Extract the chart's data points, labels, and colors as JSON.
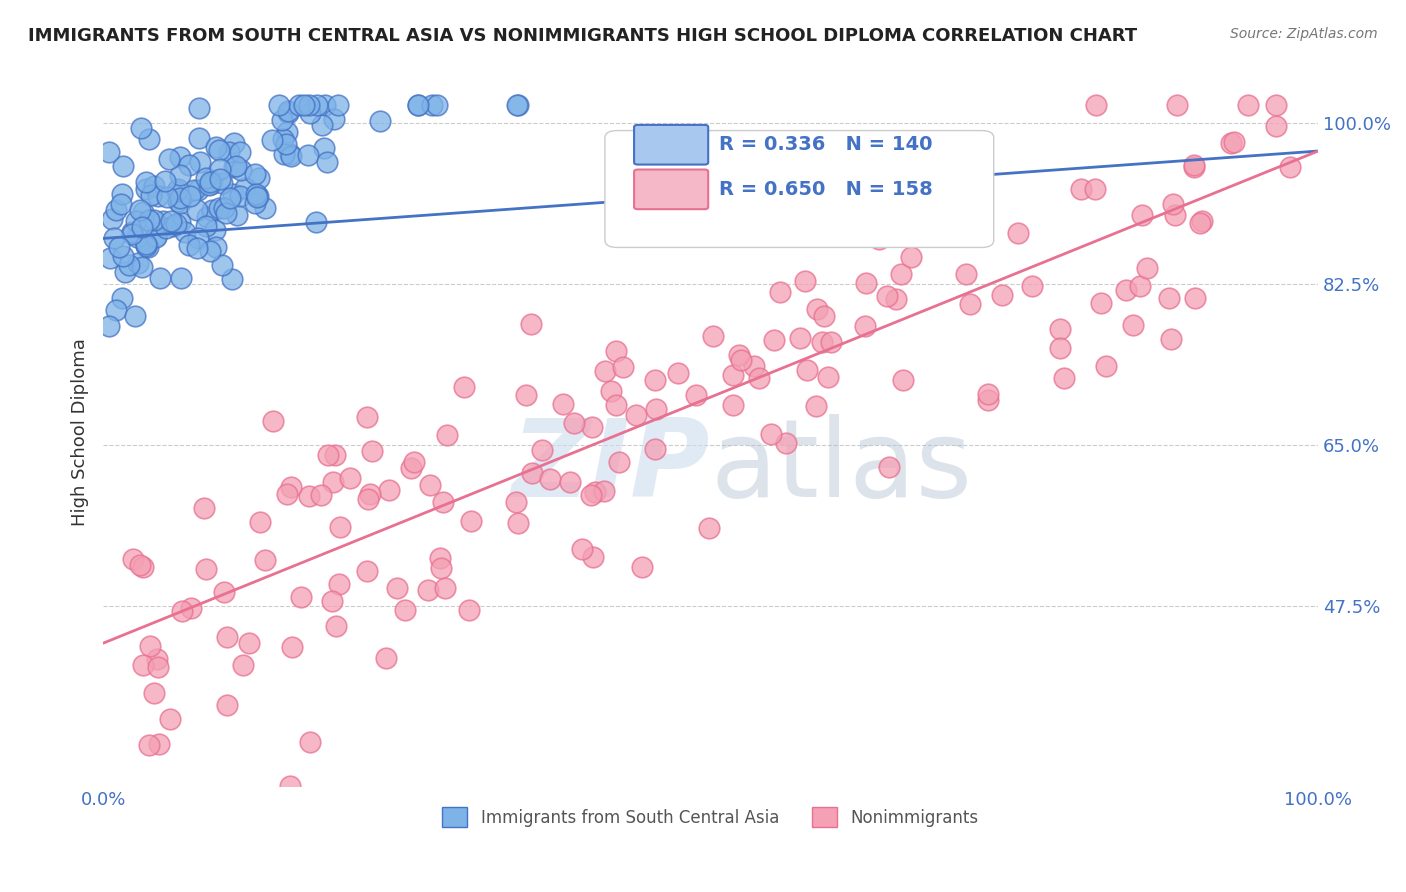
{
  "title": "IMMIGRANTS FROM SOUTH CENTRAL ASIA VS NONIMMIGRANTS HIGH SCHOOL DIPLOMA CORRELATION CHART",
  "source": "Source: ZipAtlas.com",
  "ylabel": "High School Diploma",
  "y_tick_values": [
    0.475,
    0.65,
    0.825,
    1.0
  ],
  "x_min": 0.0,
  "x_max": 1.0,
  "y_min": 0.28,
  "y_max": 1.05,
  "blue_R": 0.336,
  "blue_N": 140,
  "pink_R": 0.65,
  "pink_N": 158,
  "blue_color": "#7EB3E8",
  "pink_color": "#F4A0B5",
  "blue_line_color": "#4472C4",
  "pink_line_color": "#E87090",
  "title_color": "#222222",
  "axis_label_color": "#4472C4",
  "legend_R_N_color": "#4472C4",
  "grid_color": "#CCCCCC",
  "background_color": "#FFFFFF",
  "watermark_color": "#CCDDEE",
  "legend_box_color_blue": "#A8C8F0",
  "legend_box_color_pink": "#F4B8C8",
  "legend_label_blue": "Immigrants from South Central Asia",
  "legend_label_pink": "Nonimmigrants",
  "blue_line_intercept": 0.875,
  "blue_line_slope": 0.095,
  "pink_line_intercept": 0.435,
  "pink_line_slope": 0.535,
  "seed": 42
}
